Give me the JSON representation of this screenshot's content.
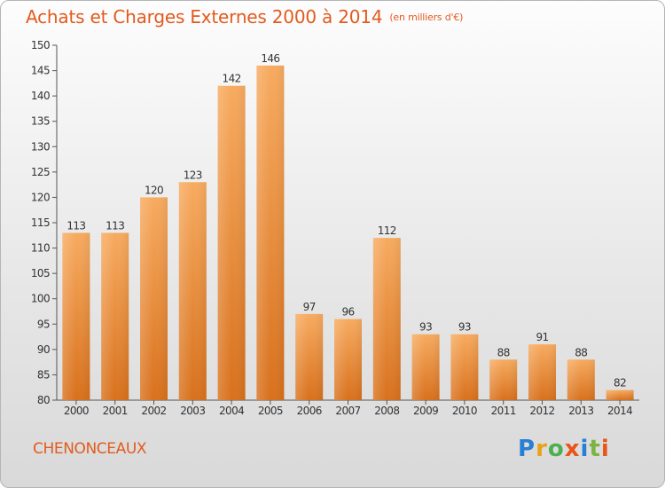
{
  "header": {
    "title": "Achats et Charges Externes 2000 à 2014",
    "unit": "(en milliers d'€)"
  },
  "footer": {
    "town": "CHENONCEAUX",
    "logo_text": "Proxiti",
    "logo_colors": [
      "#2a7fd4",
      "#e8a21a",
      "#4caf50",
      "#e8541a",
      "#2a7fd4",
      "#7cb342",
      "#e8541a"
    ]
  },
  "colors": {
    "bar_light": "#f6a65a",
    "bar_dark": "#d97420",
    "accent": "#e25b1e"
  },
  "chart_data": {
    "type": "bar",
    "categories": [
      "2000",
      "2001",
      "2002",
      "2003",
      "2004",
      "2005",
      "2006",
      "2007",
      "2008",
      "2009",
      "2010",
      "2011",
      "2012",
      "2013",
      "2014"
    ],
    "values": [
      113,
      113,
      120,
      123,
      142,
      146,
      97,
      96,
      112,
      93,
      93,
      88,
      91,
      88,
      82
    ],
    "ylim": [
      80,
      150
    ],
    "yticks": [
      80,
      85,
      90,
      95,
      100,
      105,
      110,
      115,
      120,
      125,
      130,
      135,
      140,
      145,
      150
    ],
    "grid": false,
    "data_labels": true
  }
}
